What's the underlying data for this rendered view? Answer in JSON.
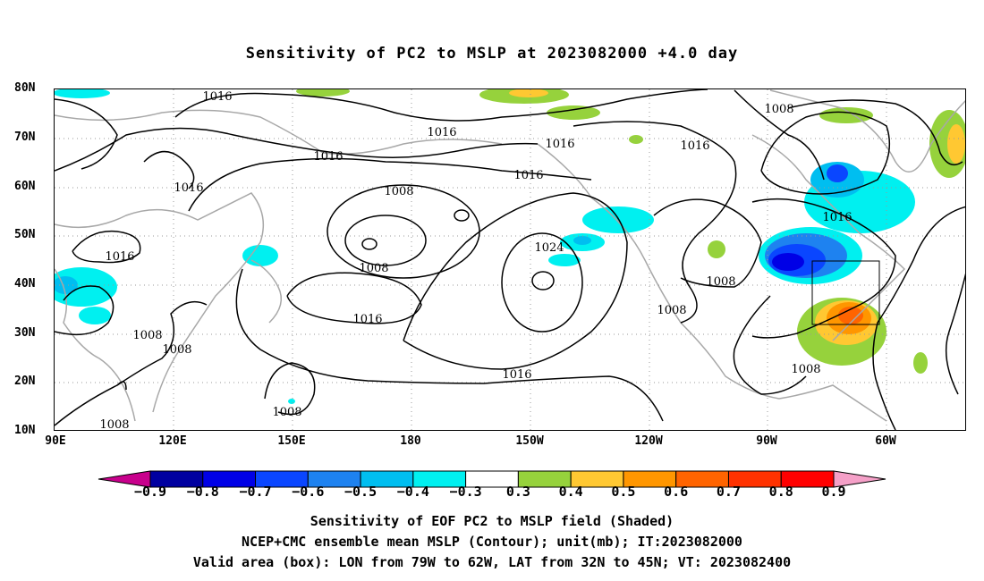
{
  "title": "Sensitivity of PC2 to MSLP at 2023082000 +4.0 day",
  "map": {
    "lat_labels": [
      "80N",
      "70N",
      "60N",
      "50N",
      "40N",
      "30N",
      "20N",
      "10N"
    ],
    "lon_labels": [
      "90E",
      "120E",
      "150E",
      "180",
      "150W",
      "120W",
      "90W",
      "60W"
    ],
    "contour_labels": [
      "1016",
      "1016",
      "1016",
      "1016",
      "1008",
      "1016",
      "1016",
      "1016",
      "1008",
      "1016",
      "1008",
      "1024",
      "1008",
      "1016",
      "1016",
      "1008",
      "1008",
      "1008",
      "1008",
      "1016",
      "1008",
      "1008",
      "1008"
    ],
    "box": {
      "lon_from": "79W",
      "lon_to": "62W",
      "lat_from": "32N",
      "lat_to": "45N"
    }
  },
  "colorbar": {
    "labels": [
      "−0.9",
      "−0.8",
      "−0.7",
      "−0.6",
      "−0.5",
      "−0.4",
      "−0.3",
      "0.3",
      "0.4",
      "0.5",
      "0.6",
      "0.7",
      "0.8",
      "0.9"
    ],
    "colors": [
      "#c8008c",
      "#0000a0",
      "#0000e6",
      "#0a46ff",
      "#1e82f0",
      "#00bef0",
      "#00f0f0",
      "#ffffff",
      "#96d23c",
      "#ffc832",
      "#ff9600",
      "#ff6400",
      "#ff3200",
      "#ff0000",
      "#f5a0c8"
    ]
  },
  "captions": {
    "line1": "Sensitivity of EOF PC2 to MSLP field (Shaded)",
    "line2": "NCEP+CMC ensemble mean MSLP (Contour); unit(mb); IT:2023082000",
    "line3": "Valid area (box): LON from 79W to 62W, LAT from 32N to 45N; VT: 2023082400"
  }
}
